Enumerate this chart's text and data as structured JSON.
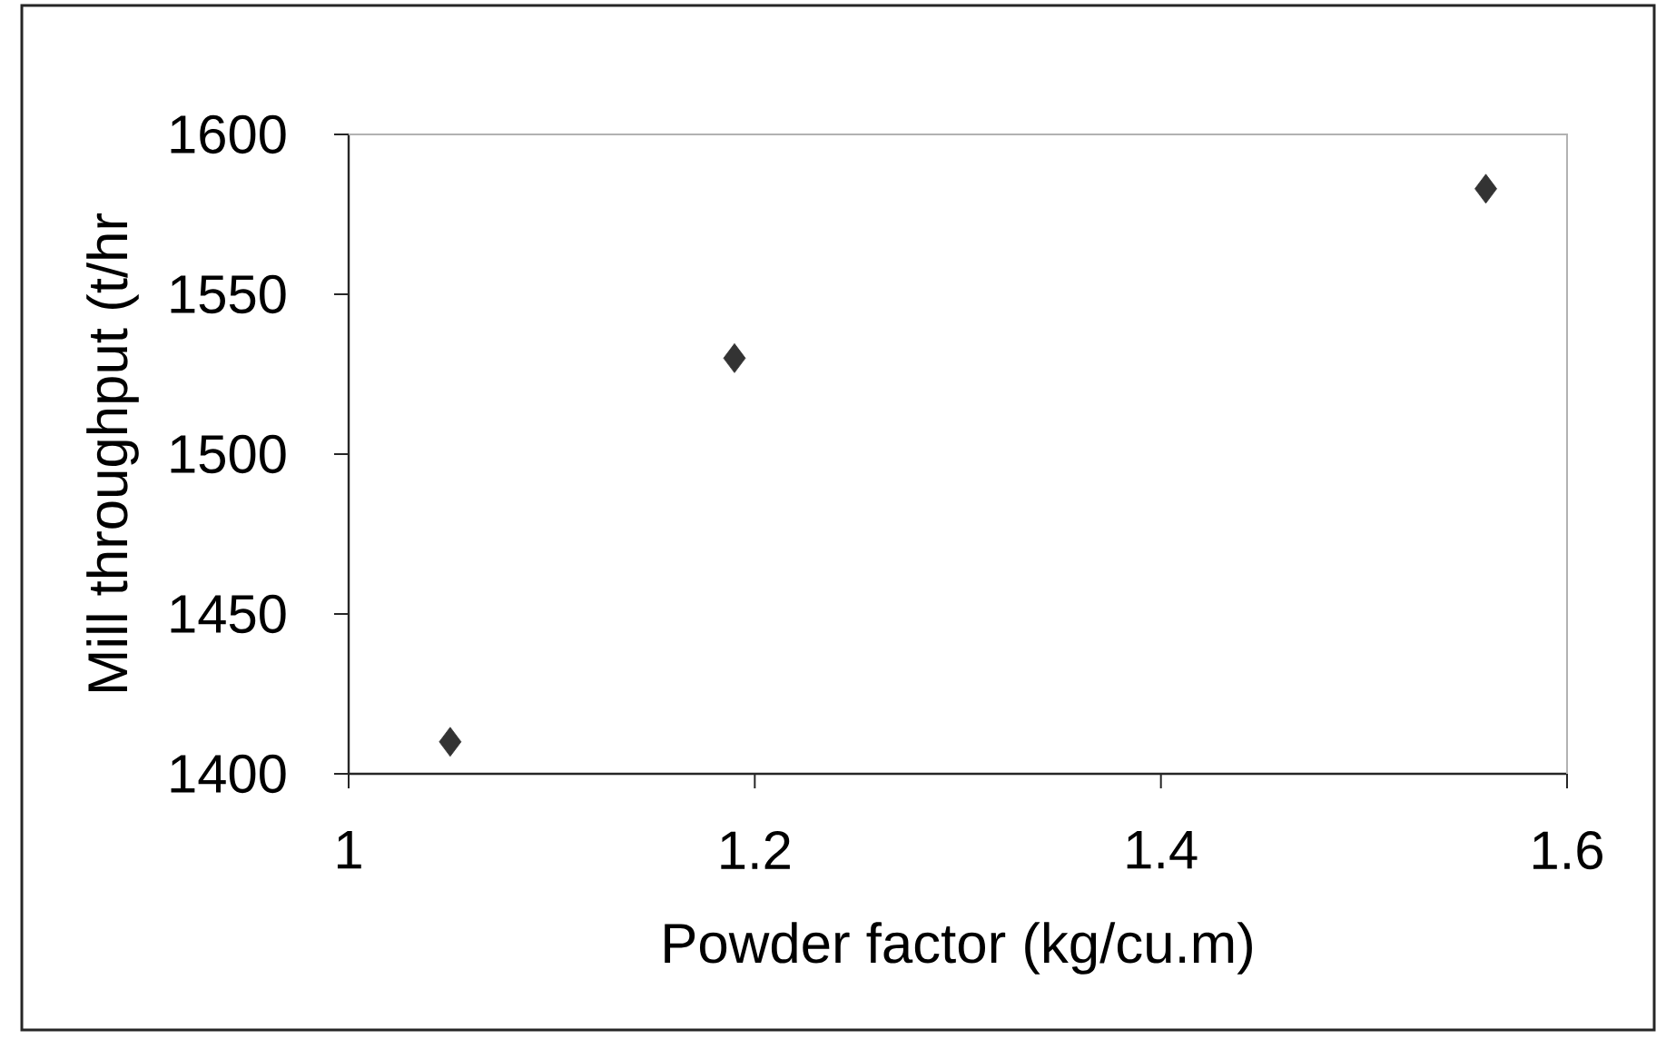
{
  "chart_data": {
    "type": "scatter",
    "xlabel": "Powder factor (kg/cu.m)",
    "ylabel": "Mill throughput (t/hr",
    "x": [
      1.05,
      1.19,
      1.56
    ],
    "values": [
      1410,
      1530,
      1583
    ],
    "color": "#333333",
    "marker": "diamond",
    "xlim": [
      1,
      1.6
    ],
    "xticks": [
      1,
      1.2,
      1.4,
      1.6
    ],
    "ylim": [
      1400,
      1600
    ],
    "yticks": [
      1400,
      1450,
      1500,
      1550,
      1600
    ]
  }
}
